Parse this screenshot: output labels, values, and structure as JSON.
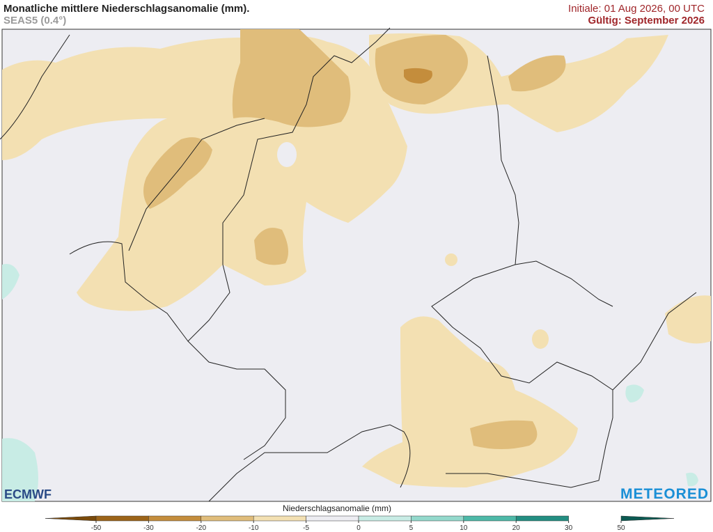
{
  "header": {
    "title": "Monatliche mittlere Niederschlagsanomalie (mm).",
    "subtitle": "SEAS5 (0.4°)",
    "initial": "Initiale: 01 Aug 2026, 00 UTC",
    "valid": "Gültig: September 2026"
  },
  "logos": {
    "left": "ECMWF",
    "right": "METEORED"
  },
  "colorbar": {
    "label": "Niederschlagsanomalie (mm)",
    "ticks": [
      -50,
      -30,
      -20,
      -10,
      -5,
      0,
      5,
      10,
      20,
      30,
      50
    ],
    "colors": [
      "#7a4a0a",
      "#9c6419",
      "#c48d3c",
      "#e0bd7b",
      "#f3e0b2",
      "#ededf2",
      "#c8ece5",
      "#93d9cc",
      "#4db9a8",
      "#238e82",
      "#0b5a52"
    ]
  }
}
